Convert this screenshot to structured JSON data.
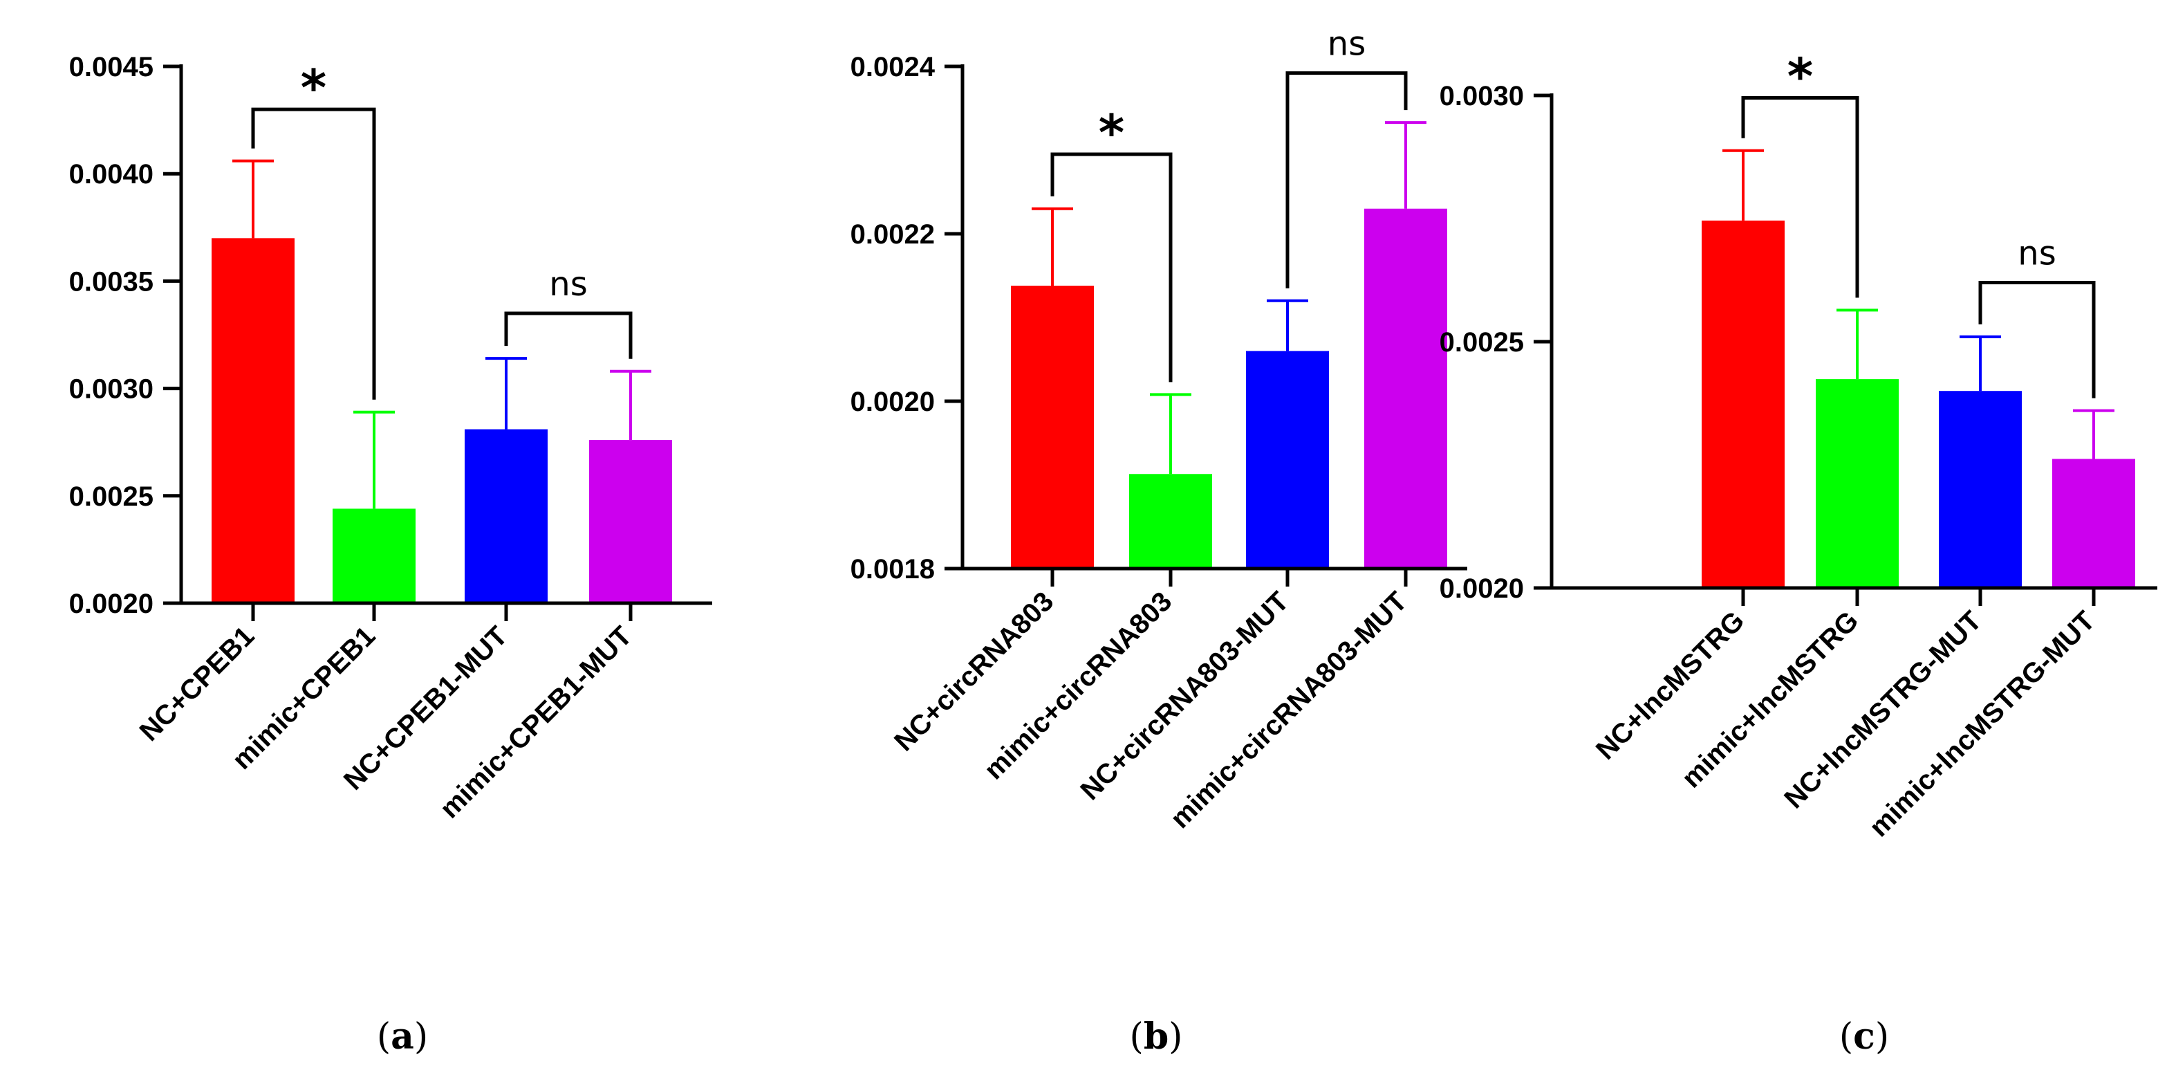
{
  "chart_data": [
    {
      "type": "bar",
      "panel_label": "a",
      "categories": [
        "NC+CPEB1",
        "mimic+CPEB1",
        "NC+CPEB1-MUT",
        "mimic+CPEB1-MUT"
      ],
      "values": [
        0.0037,
        0.00244,
        0.00281,
        0.00276
      ],
      "errors": [
        0.00036,
        0.00045,
        0.00033,
        0.00032
      ],
      "colors": [
        "#ff0000",
        "#00ff00",
        "#0000ff",
        "#cc00ee"
      ],
      "ylim": [
        0.002,
        0.0045
      ],
      "yticks": [
        0.002,
        0.0025,
        0.003,
        0.0035,
        0.004,
        0.0045
      ],
      "ytick_labels": [
        "0.0020",
        "0.0025",
        "0.0030",
        "0.0035",
        "0.0040",
        "0.0045"
      ],
      "brackets": [
        {
          "from": 0,
          "to": 1,
          "label": "*",
          "level": 0.0043
        },
        {
          "from": 2,
          "to": 3,
          "label": "ns",
          "level": 0.00335
        }
      ],
      "title": "",
      "xlabel": "",
      "ylabel": ""
    },
    {
      "type": "bar",
      "panel_label": "b",
      "categories": [
        "NC+circRNA803",
        "mimic+circRNA803",
        "NC+circRNA803-MUT",
        "mimic+circRNA803-MUT"
      ],
      "values": [
        0.002138,
        0.001913,
        0.00206,
        0.00223
      ],
      "errors": [
        9.2e-05,
        9.5e-05,
        6e-05,
        0.000103
      ],
      "colors": [
        "#ff0000",
        "#00ff00",
        "#0000ff",
        "#cc00ee"
      ],
      "ylim": [
        0.0018,
        0.0024
      ],
      "yticks": [
        0.0018,
        0.002,
        0.0022,
        0.0024
      ],
      "ytick_labels": [
        "0.0018",
        "0.0020",
        "0.0022",
        "0.0024"
      ],
      "brackets": [
        {
          "from": 0,
          "to": 1,
          "label": "*",
          "level": 0.002295
        },
        {
          "from": 2,
          "to": 3,
          "label": "ns",
          "level": 0.002392
        }
      ],
      "title": "",
      "xlabel": "",
      "ylabel": ""
    },
    {
      "type": "bar",
      "panel_label": "c",
      "categories": [
        "NC+lncMSTRG",
        "mimic+lncMSTRG",
        "NC+lncMSTRG-MUT",
        "mimic+lncMSTRG-MUT"
      ],
      "values": [
        0.002746,
        0.002424,
        0.0024,
        0.002262
      ],
      "errors": [
        0.000142,
        0.00014,
        0.00011,
        9.8e-05
      ],
      "colors": [
        "#ff0000",
        "#00ff00",
        "#0000ff",
        "#cc00ee"
      ],
      "ylim": [
        0.002,
        0.003
      ],
      "yticks": [
        0.002,
        0.0025,
        0.003
      ],
      "ytick_labels": [
        "0.0020",
        "0.0025",
        "0.0030"
      ],
      "brackets": [
        {
          "from": 0,
          "to": 1,
          "label": "*",
          "level": 0.002995
        },
        {
          "from": 2,
          "to": 3,
          "label": "ns",
          "level": 0.00262
        }
      ],
      "title": "",
      "xlabel": "",
      "ylabel": ""
    }
  ]
}
